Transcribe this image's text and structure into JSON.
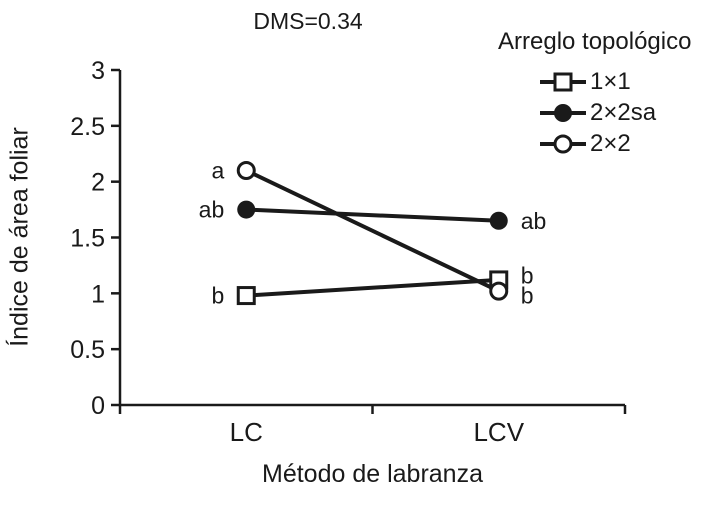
{
  "chart_data": {
    "type": "line",
    "title": "DMS=0.34",
    "legend_title": "Arreglo topológico",
    "legend_position": "top-right",
    "xlabel": "Método de labranza",
    "ylabel": "Índice de área foliar",
    "categories": [
      "LC",
      "LCV"
    ],
    "ylim": [
      0,
      3
    ],
    "yticks": [
      0,
      0.5,
      1,
      1.5,
      2,
      2.5,
      3
    ],
    "grid": false,
    "line_color": "#1a1a1a",
    "series": [
      {
        "name": "1×1",
        "marker": "open-square",
        "values": [
          0.98,
          1.12
        ],
        "labels": [
          "b",
          "b"
        ]
      },
      {
        "name": "2×2sa",
        "marker": "filled-circle",
        "values": [
          1.75,
          1.65
        ],
        "labels": [
          "ab",
          "ab"
        ]
      },
      {
        "name": "2×2",
        "marker": "open-circle",
        "values": [
          2.1,
          1.02
        ],
        "labels": [
          "a",
          "b"
        ]
      }
    ]
  }
}
